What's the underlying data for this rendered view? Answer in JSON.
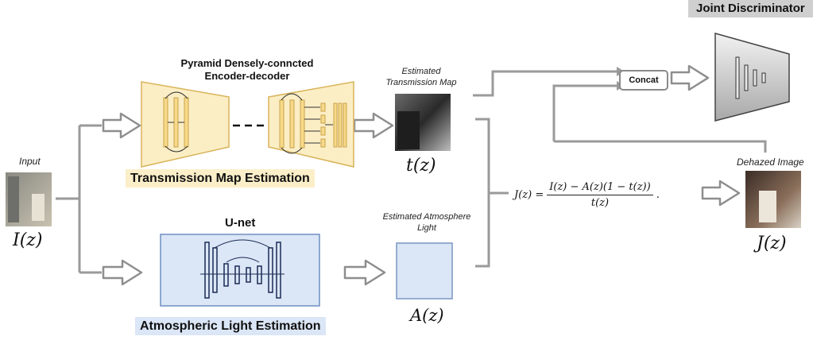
{
  "labels": {
    "joint_discriminator": "Joint Discriminator",
    "pyramid_line1": "Pyramid Densely-conncted",
    "pyramid_line2": "Encoder-decoder",
    "estimated_transmission_line1": "Estimated",
    "estimated_transmission_line2": "Transmission Map",
    "concat": "Concat",
    "input": "Input",
    "dehazed_image": "Dehazed Image",
    "transmission_map_estimation": "Transmission Map  Estimation",
    "unet": "U-net",
    "estimated_atmosphere_line1": "Estimated Atmosphere",
    "estimated_atmosphere_line2": "Light",
    "atmospheric_light_estimation": "Atmospheric Light Estimation"
  },
  "math": {
    "t_z": "t(z)",
    "I_z": "I(z)",
    "A_z": "A(z)",
    "J_z": "J(z)",
    "formula_lhs": "J(z) =",
    "formula_numerator": "I(z) − A(z)(1 − t(z))",
    "formula_denominator": "t(z)",
    "formula_end": "."
  },
  "colors": {
    "arrow_gray": "#9a9a9a",
    "encoder_yellow": "#fbeec5",
    "encoder_border": "#d9b45a",
    "unet_blue": "#dbe6f6",
    "unet_border": "#6f8fc0",
    "discriminator_gray": "#d0d0d0"
  }
}
